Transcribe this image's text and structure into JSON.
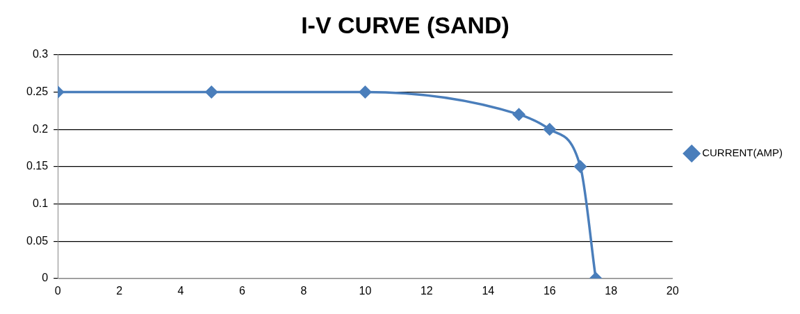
{
  "chart_data": {
    "type": "line",
    "title": "I-V CURVE (SAND)",
    "x": [
      0,
      5,
      10,
      15,
      16,
      17,
      17.5
    ],
    "series": [
      {
        "name": "CURRENT(AMP)",
        "color": "#4a7ebb",
        "values": [
          0.25,
          0.25,
          0.25,
          0.22,
          0.2,
          0.15,
          0
        ]
      }
    ],
    "xlim": [
      0,
      20
    ],
    "xticks": [
      0,
      2,
      4,
      6,
      8,
      10,
      12,
      14,
      16,
      18,
      20
    ],
    "ylim": [
      0,
      0.3
    ],
    "yticks": [
      0,
      0.05,
      0.1,
      0.15,
      0.2,
      0.25,
      0.3
    ],
    "grid": "y",
    "legend": "right",
    "marker": "diamond",
    "line_style": "solid"
  }
}
